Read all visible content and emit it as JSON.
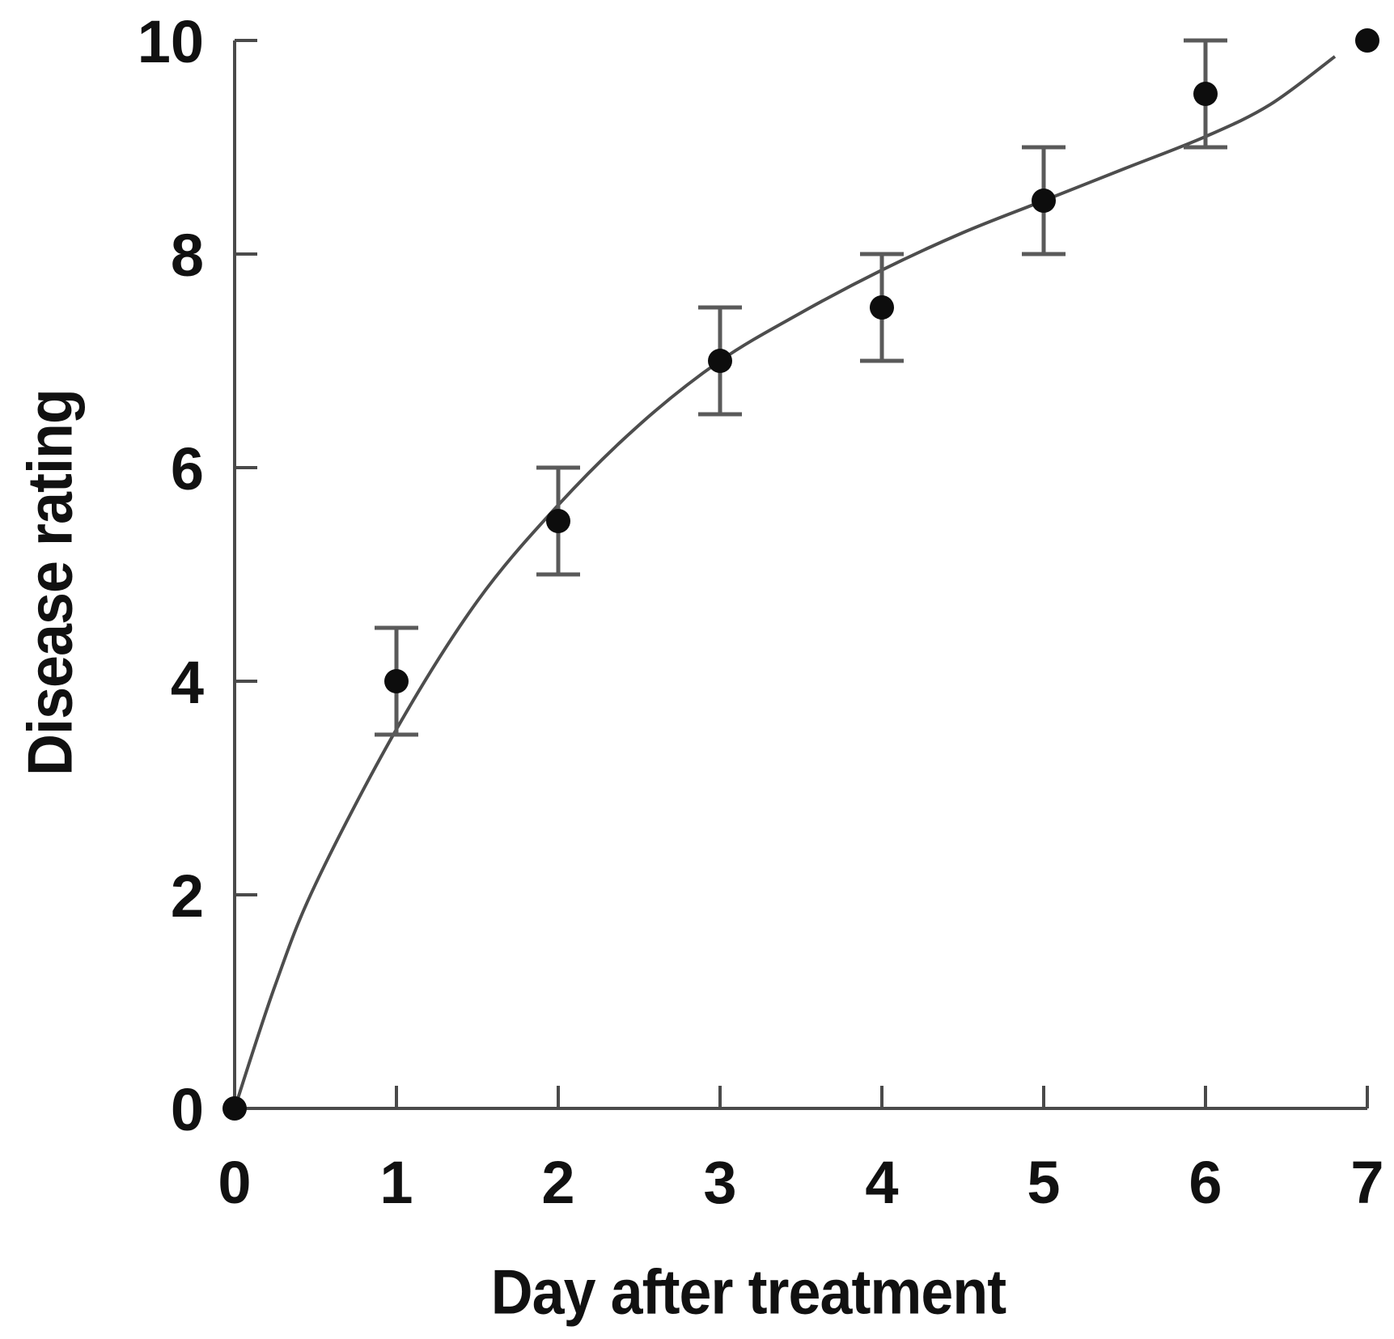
{
  "figure": {
    "background": "#ffffff"
  },
  "chart_data": {
    "type": "scatter",
    "title": "",
    "xlabel": "Day after treatment",
    "ylabel": "Disease rating",
    "xlim": [
      0,
      7
    ],
    "ylim": [
      0,
      10
    ],
    "grid": false,
    "legend": null,
    "x_ticks": [
      0,
      1,
      2,
      3,
      4,
      5,
      6,
      7
    ],
    "y_ticks": [
      0,
      2,
      4,
      6,
      8,
      10
    ],
    "categories": [
      0,
      1,
      2,
      3,
      4,
      5,
      6,
      7
    ],
    "values": [
      0,
      4.0,
      5.5,
      7.0,
      7.5,
      8.5,
      9.5,
      10.0
    ],
    "points": [
      {
        "x": 0,
        "y": 0.0,
        "err": 0
      },
      {
        "x": 1,
        "y": 4.0,
        "err": 0.5
      },
      {
        "x": 2,
        "y": 5.5,
        "err": 0.5
      },
      {
        "x": 3,
        "y": 7.0,
        "err": 0.5
      },
      {
        "x": 4,
        "y": 7.5,
        "err": 0.5
      },
      {
        "x": 5,
        "y": 8.5,
        "err": 0.5
      },
      {
        "x": 6,
        "y": 9.5,
        "err": 0.5
      },
      {
        "x": 7,
        "y": 10.0,
        "err": 0
      }
    ],
    "fit_curve": [
      [
        0,
        0
      ],
      [
        0.25,
        1.15
      ],
      [
        0.5,
        2.1
      ],
      [
        1,
        3.55
      ],
      [
        1.5,
        4.75
      ],
      [
        2,
        5.65
      ],
      [
        2.5,
        6.4
      ],
      [
        3,
        7.0
      ],
      [
        3.5,
        7.45
      ],
      [
        4,
        7.85
      ],
      [
        4.5,
        8.2
      ],
      [
        5,
        8.5
      ],
      [
        5.5,
        8.8
      ],
      [
        6,
        9.1
      ],
      [
        6.4,
        9.4
      ],
      [
        6.8,
        9.85
      ]
    ],
    "colors": {
      "point": "#0d0d0d",
      "curve": "#4d4d4d",
      "axis": "#4a4a4a",
      "error_bar": "#5a5a5a",
      "text": "#111111"
    }
  }
}
